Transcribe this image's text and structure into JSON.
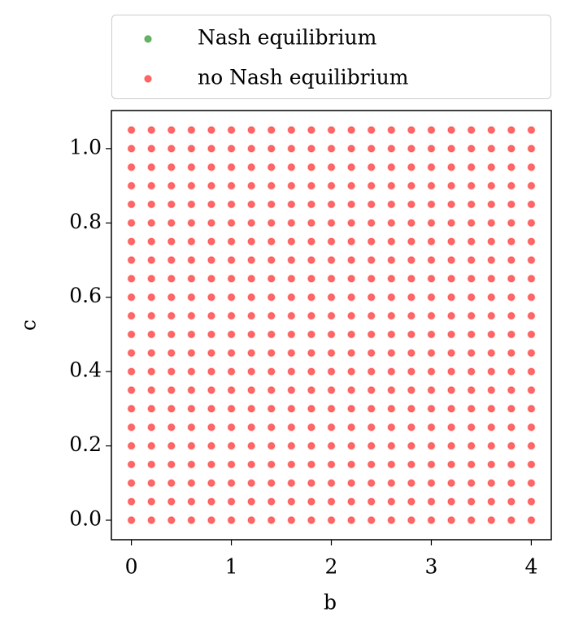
{
  "chart_data": {
    "type": "scatter",
    "xlabel": "b",
    "ylabel": "c",
    "xlim": [
      -0.2,
      4.2
    ],
    "ylim": [
      -0.0525,
      1.1025
    ],
    "xticks": [
      0,
      1,
      2,
      3,
      4
    ],
    "yticks": [
      {
        "value": 0,
        "label": "0.0"
      },
      0.2,
      0.4,
      0.6,
      0.8,
      {
        "value": 1,
        "label": "1.0"
      }
    ],
    "legend": "top-outside",
    "series": [
      {
        "name": "Nash equilibrium",
        "color": "#008000",
        "x": [],
        "y": []
      },
      {
        "name": "no Nash equilibrium",
        "color": "#ff0000",
        "x": [
          0,
          0.2,
          0.4,
          0.6,
          0.8,
          1,
          1.2,
          1.4,
          1.6,
          1.8,
          2,
          2.2,
          2.4,
          2.6,
          2.8,
          3,
          3.2,
          3.4,
          3.6,
          3.8,
          4,
          0,
          0.2,
          0.4,
          0.6,
          0.8,
          1,
          1.2,
          1.4,
          1.6,
          1.8,
          2,
          2.2,
          2.4,
          2.6,
          2.8,
          3,
          3.2,
          3.4,
          3.6,
          3.8,
          4,
          0,
          0.2,
          0.4,
          0.6,
          0.8,
          1,
          1.2,
          1.4,
          1.6,
          1.8,
          2,
          2.2,
          2.4,
          2.6,
          2.8,
          3,
          3.2,
          3.4,
          3.6,
          3.8,
          4,
          0,
          0.2,
          0.4,
          0.6,
          0.8,
          1,
          1.2,
          1.4,
          1.6,
          1.8,
          2,
          2.2,
          2.4,
          2.6,
          2.8,
          3,
          3.2,
          3.4,
          3.6,
          3.8,
          4,
          0,
          0.2,
          0.4,
          0.6,
          0.8,
          1,
          1.2,
          1.4,
          1.6,
          1.8,
          2,
          2.2,
          2.4,
          2.6,
          2.8,
          3,
          3.2,
          3.4,
          3.6,
          3.8,
          4,
          0,
          0.2,
          0.4,
          0.6,
          0.8,
          1,
          1.2,
          1.4,
          1.6,
          1.8,
          2,
          2.2,
          2.4,
          2.6,
          2.8,
          3,
          3.2,
          3.4,
          3.6,
          3.8,
          4,
          0,
          0.2,
          0.4,
          0.6,
          0.8,
          1,
          1.2,
          1.4,
          1.6,
          1.8,
          2,
          2.2,
          2.4,
          2.6,
          2.8,
          3,
          3.2,
          3.4,
          3.6,
          3.8,
          4,
          0,
          0.2,
          0.4,
          0.6,
          0.8,
          1,
          1.2,
          1.4,
          1.6,
          1.8,
          2,
          2.2,
          2.4,
          2.6,
          2.8,
          3,
          3.2,
          3.4,
          3.6,
          3.8,
          4,
          0,
          0.2,
          0.4,
          0.6,
          0.8,
          1,
          1.2,
          1.4,
          1.6,
          1.8,
          2,
          2.2,
          2.4,
          2.6,
          2.8,
          3,
          3.2,
          3.4,
          3.6,
          3.8,
          4,
          0,
          0.2,
          0.4,
          0.6,
          0.8,
          1,
          1.2,
          1.4,
          1.6,
          1.8,
          2,
          2.2,
          2.4,
          2.6,
          2.8,
          3,
          3.2,
          3.4,
          3.6,
          3.8,
          4,
          0,
          0.2,
          0.4,
          0.6,
          0.8,
          1,
          1.2,
          1.4,
          1.6,
          1.8,
          2,
          2.2,
          2.4,
          2.6,
          2.8,
          3,
          3.2,
          3.4,
          3.6,
          3.8,
          4,
          0,
          0.2,
          0.4,
          0.6,
          0.8,
          1,
          1.2,
          1.4,
          1.6,
          1.8,
          2,
          2.2,
          2.4,
          2.6,
          2.8,
          3,
          3.2,
          3.4,
          3.6,
          3.8,
          4,
          0,
          0.2,
          0.4,
          0.6,
          0.8,
          1,
          1.2,
          1.4,
          1.6,
          1.8,
          2,
          2.2,
          2.4,
          2.6,
          2.8,
          3,
          3.2,
          3.4,
          3.6,
          3.8,
          4,
          0,
          0.2,
          0.4,
          0.6,
          0.8,
          1,
          1.2,
          1.4,
          1.6,
          1.8,
          2,
          2.2,
          2.4,
          2.6,
          2.8,
          3,
          3.2,
          3.4,
          3.6,
          3.8,
          4,
          0,
          0.2,
          0.4,
          0.6,
          0.8,
          1,
          1.2,
          1.4,
          1.6,
          1.8,
          2,
          2.2,
          2.4,
          2.6,
          2.8,
          3,
          3.2,
          3.4,
          3.6,
          3.8,
          4,
          0,
          0.2,
          0.4,
          0.6,
          0.8,
          1,
          1.2,
          1.4,
          1.6,
          1.8,
          2,
          2.2,
          2.4,
          2.6,
          2.8,
          3,
          3.2,
          3.4,
          3.6,
          3.8,
          4,
          0,
          0.2,
          0.4,
          0.6,
          0.8,
          1,
          1.2,
          1.4,
          1.6,
          1.8,
          2,
          2.2,
          2.4,
          2.6,
          2.8,
          3,
          3.2,
          3.4,
          3.6,
          3.8,
          4,
          0,
          0.2,
          0.4,
          0.6,
          0.8,
          1,
          1.2,
          1.4,
          1.6,
          1.8,
          2,
          2.2,
          2.4,
          2.6,
          2.8,
          3,
          3.2,
          3.4,
          3.6,
          3.8,
          4,
          0,
          0.2,
          0.4,
          0.6,
          0.8,
          1,
          1.2,
          1.4,
          1.6,
          1.8,
          2,
          2.2,
          2.4,
          2.6,
          2.8,
          3,
          3.2,
          3.4,
          3.6,
          3.8,
          4,
          0,
          0.2,
          0.4,
          0.6,
          0.8,
          1,
          1.2,
          1.4,
          1.6,
          1.8,
          2,
          2.2,
          2.4,
          2.6,
          2.8,
          3,
          3.2,
          3.4,
          3.6,
          3.8,
          4,
          0,
          0.2,
          0.4,
          0.6,
          0.8,
          1,
          1.2,
          1.4,
          1.6,
          1.8,
          2,
          2.2,
          2.4,
          2.6,
          2.8,
          3,
          3.2,
          3.4,
          3.6,
          3.8,
          4,
          0,
          0.2,
          0.4,
          0.6,
          0.8,
          1,
          1.2,
          1.4,
          1.6,
          1.8,
          2,
          2.2,
          2.4,
          2.6,
          2.8,
          3,
          3.2,
          3.4,
          3.6,
          3.8,
          4
        ],
        "y": [
          0,
          0,
          0,
          0,
          0,
          0,
          0,
          0,
          0,
          0,
          0,
          0,
          0,
          0,
          0,
          0,
          0,
          0,
          0,
          0,
          0,
          0.05,
          0.05,
          0.05,
          0.05,
          0.05,
          0.05,
          0.05,
          0.05,
          0.05,
          0.05,
          0.05,
          0.05,
          0.05,
          0.05,
          0.05,
          0.05,
          0.05,
          0.05,
          0.05,
          0.05,
          0.05,
          0.1,
          0.1,
          0.1,
          0.1,
          0.1,
          0.1,
          0.1,
          0.1,
          0.1,
          0.1,
          0.1,
          0.1,
          0.1,
          0.1,
          0.1,
          0.1,
          0.1,
          0.1,
          0.1,
          0.1,
          0.1,
          0.15,
          0.15,
          0.15,
          0.15,
          0.15,
          0.15,
          0.15,
          0.15,
          0.15,
          0.15,
          0.15,
          0.15,
          0.15,
          0.15,
          0.15,
          0.15,
          0.15,
          0.15,
          0.15,
          0.15,
          0.15,
          0.2,
          0.2,
          0.2,
          0.2,
          0.2,
          0.2,
          0.2,
          0.2,
          0.2,
          0.2,
          0.2,
          0.2,
          0.2,
          0.2,
          0.2,
          0.2,
          0.2,
          0.2,
          0.2,
          0.2,
          0.2,
          0.25,
          0.25,
          0.25,
          0.25,
          0.25,
          0.25,
          0.25,
          0.25,
          0.25,
          0.25,
          0.25,
          0.25,
          0.25,
          0.25,
          0.25,
          0.25,
          0.25,
          0.25,
          0.25,
          0.25,
          0.25,
          0.3,
          0.3,
          0.3,
          0.3,
          0.3,
          0.3,
          0.3,
          0.3,
          0.3,
          0.3,
          0.3,
          0.3,
          0.3,
          0.3,
          0.3,
          0.3,
          0.3,
          0.3,
          0.3,
          0.3,
          0.3,
          0.35,
          0.35,
          0.35,
          0.35,
          0.35,
          0.35,
          0.35,
          0.35,
          0.35,
          0.35,
          0.35,
          0.35,
          0.35,
          0.35,
          0.35,
          0.35,
          0.35,
          0.35,
          0.35,
          0.35,
          0.35,
          0.4,
          0.4,
          0.4,
          0.4,
          0.4,
          0.4,
          0.4,
          0.4,
          0.4,
          0.4,
          0.4,
          0.4,
          0.4,
          0.4,
          0.4,
          0.4,
          0.4,
          0.4,
          0.4,
          0.4,
          0.4,
          0.45,
          0.45,
          0.45,
          0.45,
          0.45,
          0.45,
          0.45,
          0.45,
          0.45,
          0.45,
          0.45,
          0.45,
          0.45,
          0.45,
          0.45,
          0.45,
          0.45,
          0.45,
          0.45,
          0.45,
          0.45,
          0.5,
          0.5,
          0.5,
          0.5,
          0.5,
          0.5,
          0.5,
          0.5,
          0.5,
          0.5,
          0.5,
          0.5,
          0.5,
          0.5,
          0.5,
          0.5,
          0.5,
          0.5,
          0.5,
          0.5,
          0.5,
          0.55,
          0.55,
          0.55,
          0.55,
          0.55,
          0.55,
          0.55,
          0.55,
          0.55,
          0.55,
          0.55,
          0.55,
          0.55,
          0.55,
          0.55,
          0.55,
          0.55,
          0.55,
          0.55,
          0.55,
          0.55,
          0.6,
          0.6,
          0.6,
          0.6,
          0.6,
          0.6,
          0.6,
          0.6,
          0.6,
          0.6,
          0.6,
          0.6,
          0.6,
          0.6,
          0.6,
          0.6,
          0.6,
          0.6,
          0.6,
          0.6,
          0.6,
          0.65,
          0.65,
          0.65,
          0.65,
          0.65,
          0.65,
          0.65,
          0.65,
          0.65,
          0.65,
          0.65,
          0.65,
          0.65,
          0.65,
          0.65,
          0.65,
          0.65,
          0.65,
          0.65,
          0.65,
          0.65,
          0.7,
          0.7,
          0.7,
          0.7,
          0.7,
          0.7,
          0.7,
          0.7,
          0.7,
          0.7,
          0.7,
          0.7,
          0.7,
          0.7,
          0.7,
          0.7,
          0.7,
          0.7,
          0.7,
          0.7,
          0.7,
          0.75,
          0.75,
          0.75,
          0.75,
          0.75,
          0.75,
          0.75,
          0.75,
          0.75,
          0.75,
          0.75,
          0.75,
          0.75,
          0.75,
          0.75,
          0.75,
          0.75,
          0.75,
          0.75,
          0.75,
          0.75,
          0.8,
          0.8,
          0.8,
          0.8,
          0.8,
          0.8,
          0.8,
          0.8,
          0.8,
          0.8,
          0.8,
          0.8,
          0.8,
          0.8,
          0.8,
          0.8,
          0.8,
          0.8,
          0.8,
          0.8,
          0.8,
          0.85,
          0.85,
          0.85,
          0.85,
          0.85,
          0.85,
          0.85,
          0.85,
          0.85,
          0.85,
          0.85,
          0.85,
          0.85,
          0.85,
          0.85,
          0.85,
          0.85,
          0.85,
          0.85,
          0.85,
          0.85,
          0.9,
          0.9,
          0.9,
          0.9,
          0.9,
          0.9,
          0.9,
          0.9,
          0.9,
          0.9,
          0.9,
          0.9,
          0.9,
          0.9,
          0.9,
          0.9,
          0.9,
          0.9,
          0.9,
          0.9,
          0.9,
          0.95,
          0.95,
          0.95,
          0.95,
          0.95,
          0.95,
          0.95,
          0.95,
          0.95,
          0.95,
          0.95,
          0.95,
          0.95,
          0.95,
          0.95,
          0.95,
          0.95,
          0.95,
          0.95,
          0.95,
          0.95,
          1,
          1,
          1,
          1,
          1,
          1,
          1,
          1,
          1,
          1,
          1,
          1,
          1,
          1,
          1,
          1,
          1,
          1,
          1,
          1,
          1,
          1.05,
          1.05,
          1.05,
          1.05,
          1.05,
          1.05,
          1.05,
          1.05,
          1.05,
          1.05,
          1.05,
          1.05,
          1.05,
          1.05,
          1.05,
          1.05,
          1.05,
          1.05,
          1.05,
          1.05,
          1.05
        ]
      }
    ]
  }
}
